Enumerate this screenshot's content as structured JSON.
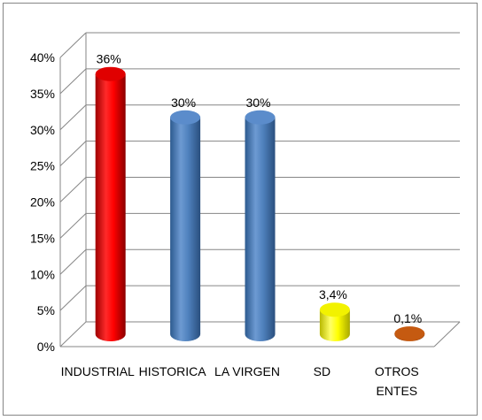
{
  "chart_data": {
    "type": "bar",
    "categories": [
      "INDUSTRIAL",
      "HISTORICA",
      "LA VIRGEN",
      "SD",
      "OTROS ENTES"
    ],
    "values": [
      36,
      30,
      30,
      3.4,
      0.1
    ],
    "data_labels": [
      "36%",
      "30%",
      "30%",
      "3,4%",
      "0,1%"
    ],
    "colors": [
      "#ff0000",
      "#4f81bd",
      "#4f81bd",
      "#ffff00",
      "#c55a11"
    ],
    "ylim": [
      0,
      40
    ],
    "y_ticks": [
      0,
      5,
      10,
      15,
      20,
      25,
      30,
      35,
      40
    ],
    "y_tick_labels": [
      "0%",
      "5%",
      "10%",
      "15%",
      "20%",
      "25%",
      "30%",
      "35%",
      "40%"
    ],
    "grid": true,
    "legend": "none",
    "style": "3d-cylinder"
  }
}
